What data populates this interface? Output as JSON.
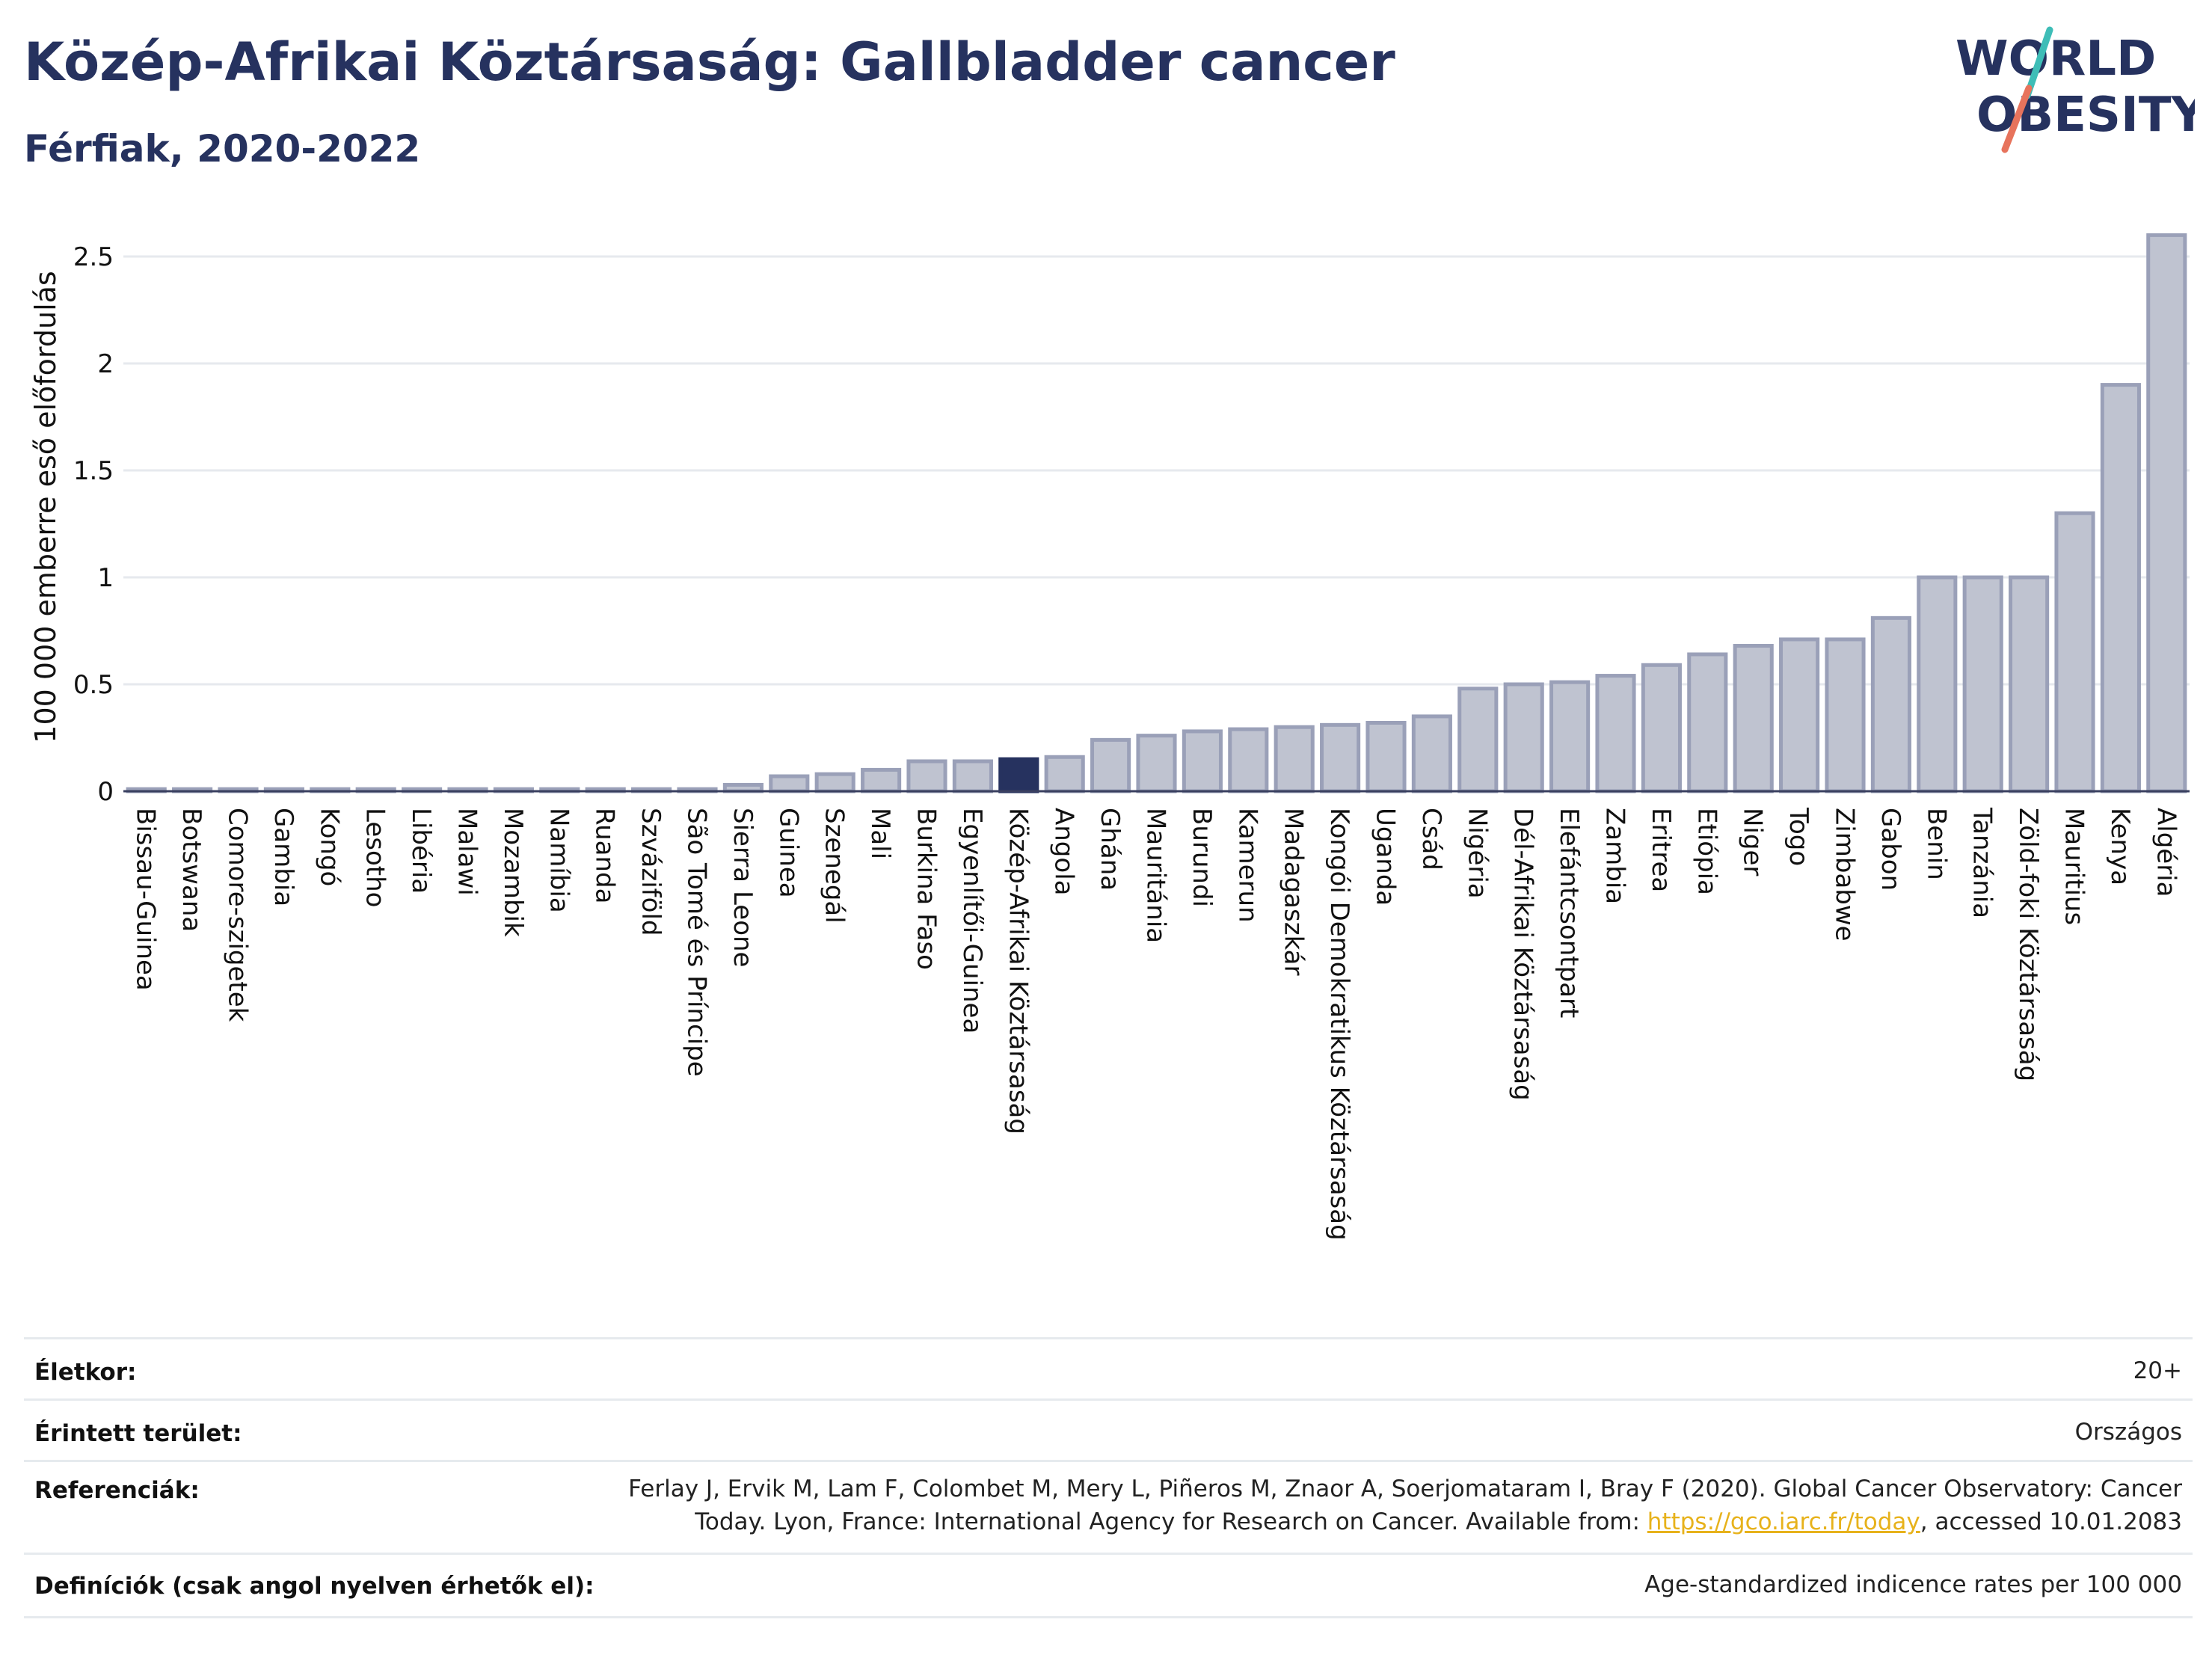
{
  "header": {
    "title": "Közép-Afrikai Köztársaság: Gallbladder cancer",
    "subtitle": "Férfiak, 2020-2022"
  },
  "logo": {
    "line1": "WORLD",
    "line2": "OBESITY"
  },
  "chart_data": {
    "type": "bar",
    "ylabel": "100 000 emberre eső előfordulás",
    "xlabel": "",
    "ylim": [
      0,
      2.65
    ],
    "yticks": [
      0,
      0.5,
      1,
      1.5,
      2,
      2.5
    ],
    "ytick_labels": [
      "0",
      "0.5",
      "1",
      "1.5",
      "2",
      "2.5"
    ],
    "grid": true,
    "highlight": "Közép-Afrikai Köztársaság",
    "colors": {
      "bar": "#bfc3d0",
      "bar_edge": "#9aa0b8",
      "highlight": "#26325f",
      "grid": "#e6e9ee"
    },
    "categories": [
      "Bissau-Guinea",
      "Botswana",
      "Comore-szigetek",
      "Gambia",
      "Kongó",
      "Lesotho",
      "Libéria",
      "Malawi",
      "Mozambik",
      "Namíbia",
      "Ruanda",
      "Szváziföld",
      "São Tomé és Príncipe",
      "Sierra Leone",
      "Guinea",
      "Szenegál",
      "Mali",
      "Burkina Faso",
      "Egyenlítői-Guinea",
      "Közép-Afrikai Köztársaság",
      "Angola",
      "Ghána",
      "Mauritánia",
      "Burundi",
      "Kamerun",
      "Madagaszkár",
      "Kongói Demokratikus Köztársaság",
      "Uganda",
      "Csád",
      "Nigéria",
      "Dél-Afrikai Köztársaság",
      "Elefántcsontpart",
      "Zambia",
      "Eritrea",
      "Etiópia",
      "Niger",
      "Togo",
      "Zimbabwe",
      "Gabon",
      "Benin",
      "Tanzánia",
      "Zöld-foki Köztársaság",
      "Mauritius",
      "Kenya",
      "Algéria"
    ],
    "values": [
      0.01,
      0.01,
      0.01,
      0.01,
      0.01,
      0.01,
      0.01,
      0.01,
      0.01,
      0.01,
      0.01,
      0.01,
      0.01,
      0.03,
      0.07,
      0.08,
      0.1,
      0.14,
      0.14,
      0.15,
      0.16,
      0.24,
      0.26,
      0.28,
      0.29,
      0.3,
      0.31,
      0.32,
      0.35,
      0.48,
      0.5,
      0.51,
      0.54,
      0.59,
      0.64,
      0.68,
      0.71,
      0.71,
      0.81,
      1.0,
      1.0,
      1.0,
      1.3,
      1.9,
      2.6
    ]
  },
  "meta": {
    "age_label": "Életkor:",
    "age_value": "20+",
    "area_label": "Érintett terület:",
    "area_value": "Országos",
    "ref_label": "Referenciák:",
    "ref_line1": "Ferlay J, Ervik M, Lam F, Colombet M, Mery L, Piñeros M, Znaor A, Soerjomataram I, Bray F (2020). Global Cancer Observatory: Cancer",
    "ref_line2_pre": "Today. Lyon, France: International Agency for Research on Cancer. Available from: ",
    "ref_link": "https://gco.iarc.fr/today",
    "ref_line2_post": ", accessed 10.01.2083",
    "def_label": "Definíciók (csak angol nyelven érhetők el):",
    "def_value": "Age-standardized indicence rates per 100 000"
  }
}
